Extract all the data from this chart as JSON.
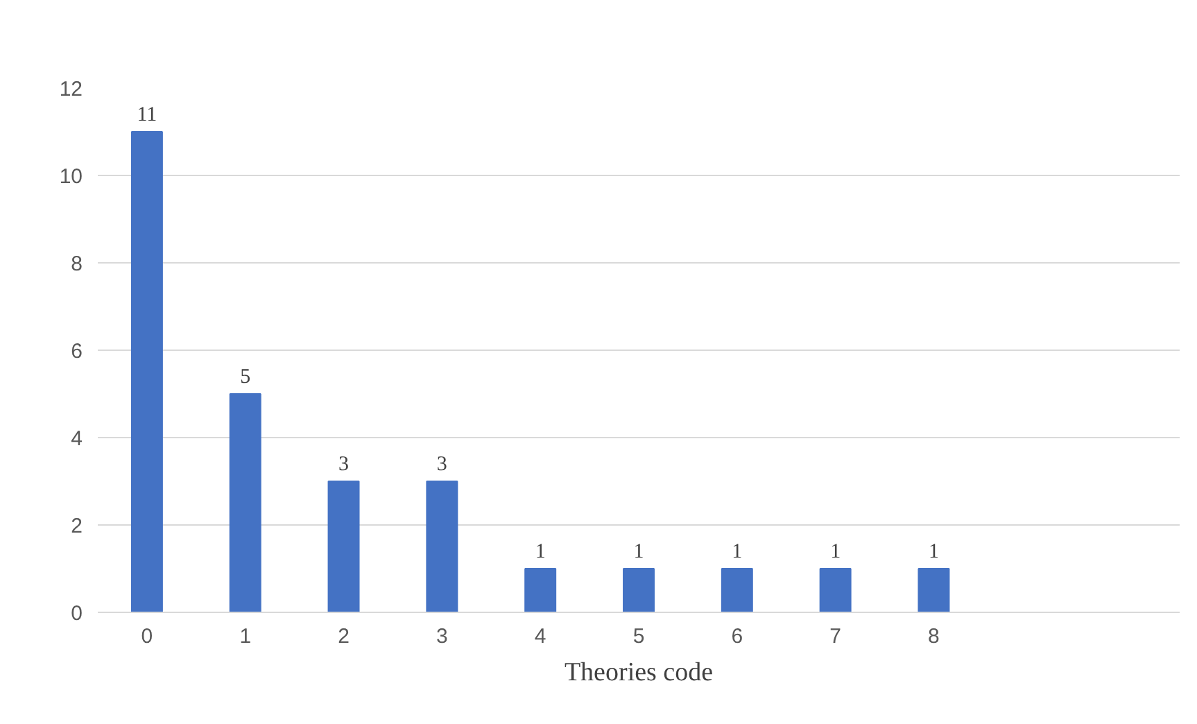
{
  "chart_data": {
    "type": "bar",
    "xlabel": "Theories code",
    "categories": [
      "0",
      "1",
      "2",
      "3",
      "4",
      "5",
      "6",
      "7",
      "8",
      null,
      null
    ],
    "values": [
      11,
      5,
      3,
      3,
      1,
      1,
      1,
      1,
      1,
      null,
      null
    ],
    "color": "#4472c4",
    "ylim": [
      0,
      12
    ],
    "yticks": [
      0,
      2,
      4,
      6,
      8,
      10,
      12
    ],
    "grid": "y",
    "data_labels": true
  }
}
